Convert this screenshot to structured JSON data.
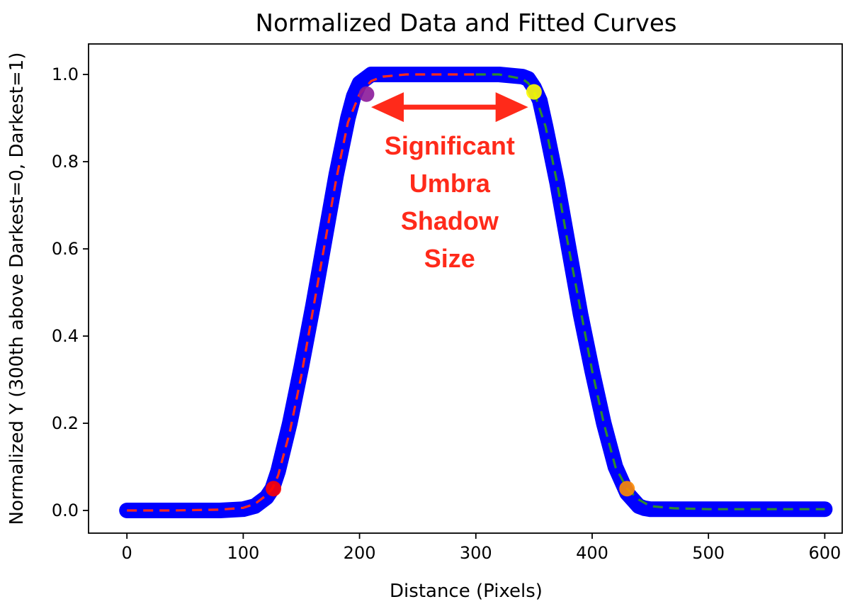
{
  "chart_data": {
    "type": "line",
    "title": "Normalized Data and Fitted Curves",
    "xlabel": "Distance (Pixels)",
    "ylabel": "Normalized Y (300th above Darkest=0, Darkest=1)",
    "xlim": [
      -33,
      615
    ],
    "ylim": [
      -0.052,
      1.07
    ],
    "x_ticks": [
      0,
      100,
      200,
      300,
      400,
      500,
      600
    ],
    "y_ticks": [
      0.0,
      0.2,
      0.4,
      0.6,
      0.8,
      1.0
    ],
    "y_tick_labels": [
      "0.0",
      "0.2",
      "0.4",
      "0.6",
      "0.8",
      "1.0"
    ],
    "grid": false,
    "series": [
      {
        "kind": "data",
        "color": "#0000ff",
        "x": [
          0,
          20,
          40,
          60,
          80,
          100,
          110,
          120,
          125,
          130,
          140,
          150,
          160,
          170,
          180,
          190,
          195,
          200,
          205,
          210,
          220,
          240,
          260,
          280,
          300,
          320,
          340,
          345,
          350,
          355,
          360,
          370,
          380,
          390,
          400,
          410,
          420,
          430,
          440,
          445,
          450,
          460,
          480,
          500,
          520,
          540,
          560,
          580,
          600
        ],
        "y": [
          0.0,
          0.0,
          0.0,
          0.0,
          0.0,
          0.003,
          0.01,
          0.03,
          0.05,
          0.09,
          0.2,
          0.33,
          0.47,
          0.62,
          0.77,
          0.9,
          0.95,
          0.98,
          0.99,
          1.0,
          1.0,
          1.0,
          1.0,
          1.0,
          1.0,
          1.0,
          0.995,
          0.99,
          0.97,
          0.94,
          0.88,
          0.75,
          0.6,
          0.45,
          0.32,
          0.2,
          0.1,
          0.04,
          0.01,
          0.005,
          0.003,
          0.003,
          0.003,
          0.003,
          0.003,
          0.003,
          0.003,
          0.003,
          0.003
        ]
      },
      {
        "kind": "fit-left",
        "color": "#ff2a1a",
        "dashed": true,
        "x": [
          0,
          40,
          80,
          100,
          110,
          120,
          125,
          130,
          140,
          150,
          160,
          170,
          180,
          190,
          200,
          205,
          210,
          220,
          240,
          260,
          280,
          300
        ],
        "y": [
          0.0,
          0.0,
          0.002,
          0.006,
          0.015,
          0.035,
          0.05,
          0.08,
          0.18,
          0.31,
          0.46,
          0.61,
          0.76,
          0.89,
          0.955,
          0.97,
          0.985,
          0.995,
          1.0,
          1.0,
          1.0,
          1.0
        ]
      },
      {
        "kind": "fit-right",
        "color": "#2e8b2e",
        "dashed": true,
        "x": [
          300,
          320,
          340,
          345,
          350,
          360,
          370,
          380,
          390,
          400,
          410,
          420,
          430,
          440,
          450,
          470,
          500,
          550,
          600
        ],
        "y": [
          1.0,
          1.0,
          0.99,
          0.98,
          0.96,
          0.88,
          0.75,
          0.6,
          0.46,
          0.32,
          0.2,
          0.1,
          0.05,
          0.025,
          0.01,
          0.005,
          0.003,
          0.003,
          0.003
        ]
      }
    ],
    "markers": [
      {
        "x": 126,
        "y": 0.05,
        "color": "#ff0000"
      },
      {
        "x": 206,
        "y": 0.955,
        "color": "#8b1a9a"
      },
      {
        "x": 350,
        "y": 0.96,
        "color": "#ffff00"
      },
      {
        "x": 430,
        "y": 0.05,
        "color": "#ff8c00"
      }
    ],
    "annotation": {
      "lines": [
        "Significant",
        "Umbra",
        "Shadow",
        "Size"
      ],
      "color": "#ff2a1a",
      "arrow_x": [
        210,
        345
      ],
      "arrow_y": 0.925
    }
  }
}
